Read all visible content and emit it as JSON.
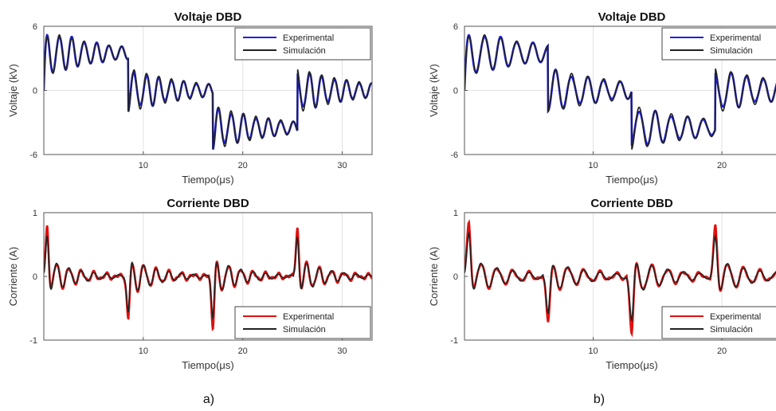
{
  "figure": {
    "captions": [
      "a)",
      "b)"
    ]
  },
  "chart_data": [
    {
      "panel": "a",
      "type": "line",
      "title": "Voltaje DBD",
      "xlabel": "Tiempo(μs)",
      "ylabel": "Voltaje (kV)",
      "xlim": [
        0,
        33
      ],
      "ylim": [
        -6,
        6
      ],
      "xticks": [
        10,
        20,
        30
      ],
      "yticks": [
        -6,
        0,
        6
      ],
      "grid": true,
      "legend": "top-right",
      "signal": {
        "kind": "voltage",
        "edges": [
          8.5,
          17,
          25.5
        ],
        "levels": [
          3.5,
          0,
          -3.5,
          0
        ],
        "overshoot": 2.0,
        "ring_period": 1.25,
        "ring_decay": 3.0
      },
      "series": [
        {
          "name": "Experimental",
          "color": "#1f1fe0",
          "style": "experimental"
        },
        {
          "name": "Simulación",
          "color": "#222222",
          "style": "simulation"
        }
      ]
    },
    {
      "panel": "a",
      "type": "line",
      "title": "Corriente DBD",
      "xlabel": "Tiempo(μs)",
      "ylabel": "Corriente (A)",
      "xlim": [
        0,
        33
      ],
      "ylim": [
        -1,
        1
      ],
      "xticks": [
        10,
        20,
        30
      ],
      "yticks": [
        -1,
        0,
        1
      ],
      "grid": true,
      "legend": "bottom-right",
      "signal": {
        "kind": "current",
        "edges": [
          8.5,
          17,
          25.5
        ],
        "peaks": [
          0.8,
          -0.7,
          -0.8,
          0.8
        ],
        "ring_period": 1.25,
        "ring_decay": 3.0
      },
      "series": [
        {
          "name": "Experimental",
          "color": "#e01010",
          "style": "experimental"
        },
        {
          "name": "Simulación",
          "color": "#222222",
          "style": "simulation"
        }
      ]
    },
    {
      "panel": "b",
      "type": "line",
      "title": "Voltaje DBD",
      "xlabel": "Tiempo(μs)",
      "ylabel": "Voltaje (kV)",
      "xlim": [
        0,
        26
      ],
      "ylim": [
        -6,
        6
      ],
      "xticks": [
        10,
        20
      ],
      "yticks": [
        -6,
        0,
        6
      ],
      "grid": true,
      "legend": "top-right",
      "signal": {
        "kind": "voltage",
        "edges": [
          6.5,
          13,
          19.5
        ],
        "levels": [
          3.5,
          0,
          -3.5,
          0
        ],
        "overshoot": 2.0,
        "ring_period": 1.25,
        "ring_decay": 3.0
      },
      "series": [
        {
          "name": "Experimental",
          "color": "#1f1fe0",
          "style": "experimental"
        },
        {
          "name": "Simulación",
          "color": "#222222",
          "style": "simulation"
        }
      ]
    },
    {
      "panel": "b",
      "type": "line",
      "title": "Corriente DBD",
      "xlabel": "Tiempo(μs)",
      "ylabel": "Corriente (A)",
      "xlim": [
        0,
        26
      ],
      "ylim": [
        -1,
        1
      ],
      "xticks": [
        10,
        20
      ],
      "yticks": [
        -1,
        0,
        1
      ],
      "grid": true,
      "legend": "bottom-right",
      "signal": {
        "kind": "current",
        "edges": [
          6.5,
          13,
          19.5
        ],
        "peaks": [
          0.85,
          -0.75,
          -0.9,
          0.75
        ],
        "ring_period": 1.25,
        "ring_decay": 3.0
      },
      "series": [
        {
          "name": "Experimental",
          "color": "#e01010",
          "style": "experimental"
        },
        {
          "name": "Simulación",
          "color": "#222222",
          "style": "simulation"
        }
      ]
    }
  ]
}
